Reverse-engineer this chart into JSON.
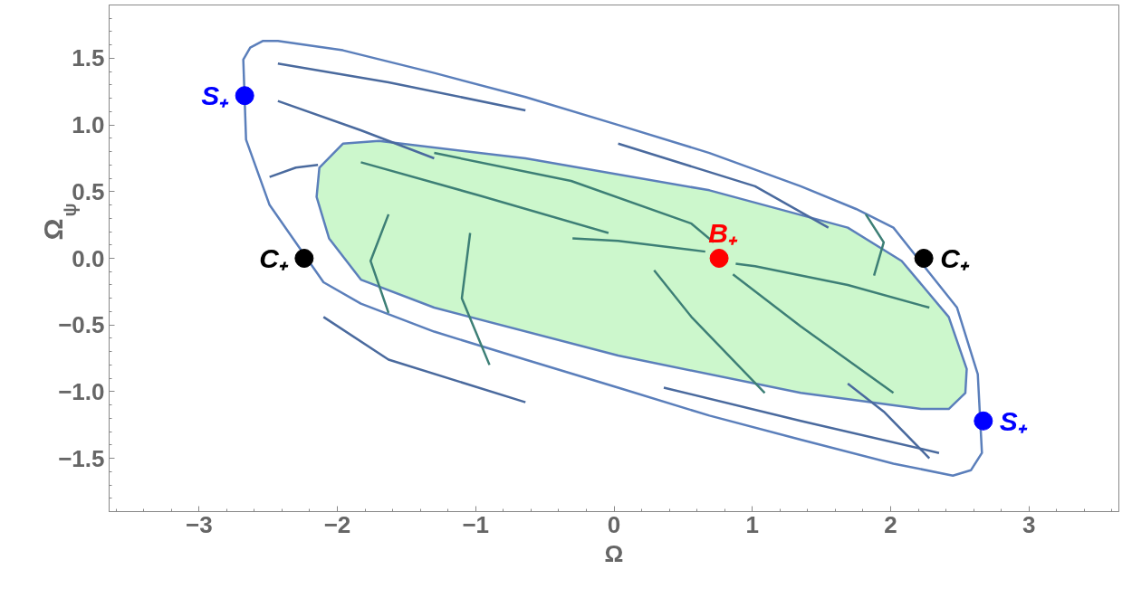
{
  "chart_data": {
    "type": "line",
    "xlabel": "Ω",
    "ylabel": "Ω$_{ψ}$",
    "xlim": [
      -3.65,
      3.65
    ],
    "ylim": [
      -1.9,
      1.9
    ],
    "xticks": [
      {
        "value": -3,
        "label": "−3"
      },
      {
        "value": -2,
        "label": "−2"
      },
      {
        "value": -1,
        "label": "−1"
      },
      0,
      1,
      2,
      3
    ],
    "yticks": [
      {
        "value": -1.5,
        "label": "−1.5"
      },
      {
        "value": -1,
        "label": "−1.0"
      },
      {
        "value": -0.5,
        "label": "−0.5"
      },
      {
        "value": 0,
        "label": "0.0"
      },
      {
        "value": 0.5,
        "label": "0.5"
      },
      {
        "value": 1,
        "label": "1.0"
      },
      {
        "value": 1.5,
        "label": "1.5"
      }
    ],
    "grid": false,
    "marker": "none",
    "line_style": "solid",
    "series": [
      {
        "type": "area",
        "color": "#ffffff",
        "x": [
          -2.68,
          -2.63,
          -2.54,
          -2.43,
          -1.96,
          -1.3,
          -0.64,
          0.03,
          0.69,
          1.35,
          1.75,
          2.02,
          2.48,
          2.63,
          2.66,
          2.58,
          2.45,
          2.02,
          1.35,
          0.69,
          0.03,
          -0.64,
          -1.3,
          -1.83,
          -2.1,
          -2.49,
          -2.66,
          -2.68
        ],
        "values": [
          1.49,
          1.58,
          1.63,
          1.63,
          1.56,
          1.39,
          1.21,
          1.0,
          0.79,
          0.54,
          0.37,
          0.23,
          -0.37,
          -0.87,
          -1.46,
          -1.59,
          -1.63,
          -1.54,
          -1.36,
          -1.18,
          -0.97,
          -0.76,
          -0.55,
          -0.34,
          -0.18,
          0.4,
          0.89,
          1.49
        ]
      },
      {
        "type": "area",
        "color": "#ccf7cc",
        "x": [
          -1.96,
          -1.7,
          -0.64,
          0.69,
          1.69,
          2.08,
          2.42,
          2.55,
          2.54,
          2.42,
          2.22,
          1.35,
          0.03,
          -1.3,
          -1.83,
          -2.06,
          -2.15,
          -2.13,
          -1.96
        ],
        "values": [
          0.86,
          0.88,
          0.75,
          0.51,
          0.23,
          -0.02,
          -0.44,
          -0.83,
          -1.01,
          -1.13,
          -1.13,
          -1.01,
          -0.73,
          -0.37,
          -0.16,
          0.15,
          0.46,
          0.68,
          0.86
        ]
      },
      {
        "color": "#3d7f76",
        "x": [
          -0.3,
          0.03,
          0.66
        ],
        "values": [
          0.15,
          0.13,
          0.05
        ]
      },
      {
        "color": "#3d7f76",
        "x": [
          2.28,
          1.69,
          1.02,
          0.88
        ],
        "values": [
          -0.37,
          -0.2,
          -0.06,
          -0.04
        ]
      },
      {
        "color": "#3d7f76",
        "x": [
          2.02,
          1.35,
          0.86
        ],
        "values": [
          -1.01,
          -0.51,
          -0.12
        ]
      },
      {
        "color": "#3d7f76",
        "x": [
          1.09,
          0.56,
          0.29
        ],
        "values": [
          -1.01,
          -0.44,
          -0.09
        ]
      },
      {
        "color": "#3d7f76",
        "x": [
          -0.9,
          -1.1,
          -1.04
        ],
        "values": [
          -0.8,
          -0.3,
          0.19
        ]
      },
      {
        "color": "#3d7f76",
        "x": [
          -1.63,
          -1.76,
          -1.63
        ],
        "values": [
          -0.41,
          -0.02,
          0.33
        ]
      },
      {
        "color": "#3d7f76",
        "x": [
          -1.83,
          -0.97,
          -0.04
        ],
        "values": [
          0.72,
          0.47,
          0.19
        ]
      },
      {
        "color": "#3d7f76",
        "x": [
          -1.3,
          -0.31,
          0.56,
          0.72
        ],
        "values": [
          0.79,
          0.58,
          0.26,
          0.12
        ]
      },
      {
        "color": "#3d7f76",
        "x": [
          1.82,
          1.95,
          1.88
        ],
        "values": [
          0.33,
          0.12,
          -0.13
        ]
      },
      {
        "color": "#4a6a9e",
        "x": [
          -2.43,
          -1.63,
          -0.64
        ],
        "values": [
          1.46,
          1.32,
          1.11
        ]
      },
      {
        "color": "#4a6a9e",
        "x": [
          0.03,
          1.02,
          1.55
        ],
        "values": [
          0.86,
          0.54,
          0.23
        ]
      },
      {
        "color": "#4a6a9e",
        "x": [
          -2.43,
          -1.83,
          -1.3
        ],
        "values": [
          1.18,
          0.96,
          0.75
        ]
      },
      {
        "color": "#4a6a9e",
        "x": [
          -2.49,
          -2.3,
          -2.14
        ],
        "values": [
          0.61,
          0.68,
          0.7
        ]
      },
      {
        "color": "#4a6a9e",
        "x": [
          2.35,
          1.35,
          0.36
        ],
        "values": [
          -1.46,
          -1.22,
          -0.97
        ]
      },
      {
        "color": "#4a6a9e",
        "x": [
          -0.64,
          -1.63,
          -2.1
        ],
        "values": [
          -1.08,
          -0.76,
          -0.44
        ]
      },
      {
        "color": "#4a6a9e",
        "x": [
          2.28,
          1.95,
          1.69
        ],
        "values": [
          -1.5,
          -1.15,
          -0.94
        ]
      },
      {
        "type": "scatter",
        "name": "S₊",
        "color": "#0000ff",
        "marker": "circle",
        "x": [
          -2.67,
          2.67
        ],
        "values": [
          1.22,
          -1.22
        ]
      },
      {
        "type": "scatter",
        "name": "C₊",
        "color": "#000000",
        "marker": "circle",
        "x": [
          -2.24,
          2.24
        ],
        "values": [
          0.0,
          0.0
        ]
      },
      {
        "type": "scatter",
        "name": "B₊",
        "color": "#ff0000",
        "marker": "circle",
        "x": [
          0.76
        ],
        "values": [
          0.0
        ]
      }
    ]
  }
}
